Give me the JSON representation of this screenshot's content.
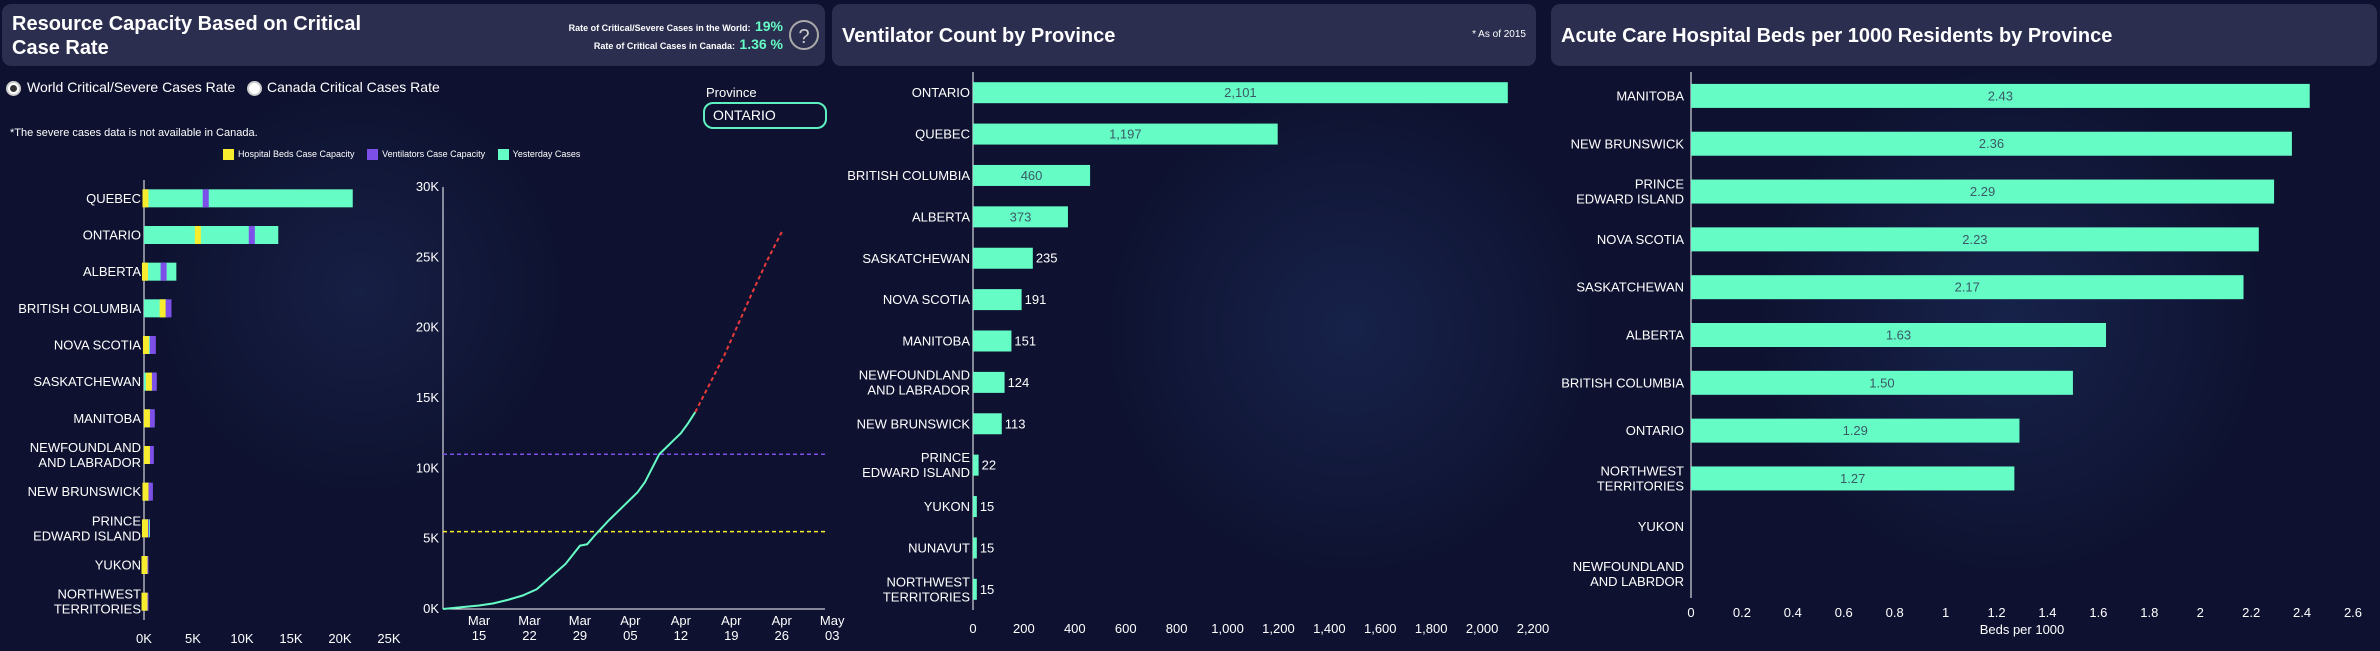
{
  "colors": {
    "bg": "#0e1230",
    "header": "#2b2e4f",
    "green": "#66fcc6",
    "purple": "#7b4fe8",
    "yellow": "#f7ec2e",
    "red": "#e83a3a",
    "axis": "#ffffff"
  },
  "panel1": {
    "title": "Resource Capacity Based on Critical Case Rate",
    "world_rate_label": "Rate of Critical/Severe Cases in the World:",
    "world_rate_value": "19%",
    "canada_rate_label": "Rate of Critical Cases in Canada:",
    "canada_rate_value": "1.36 %",
    "help_icon": "question-circle-icon",
    "help_text": "?",
    "radio_world": "World Critical/Severe Cases Rate",
    "radio_canada": "Canada Critical Cases Rate",
    "province_label": "Province",
    "province_value": "ONTARIO",
    "note": "*The severe cases data is not available in Canada.",
    "legend": [
      "Hospital Beds Case Capacity",
      "Ventilators Case Capacity",
      "Yesterday Cases"
    ]
  },
  "panel2": {
    "title": "Ventilator Count by Province",
    "note": "* As of 2015"
  },
  "panel3": {
    "title": "Acute Care Hospital Beds per 1000 Residents by Province"
  },
  "chart_data": [
    {
      "type": "bar",
      "orientation": "horizontal",
      "categories": [
        "QUEBEC",
        "ONTARIO",
        "ALBERTA",
        "BRITISH COLUMBIA",
        "NOVA SCOTIA",
        "SASKATCHEWAN",
        "MANITOBA",
        "NEWFOUNDLAND AND LABRADOR",
        "NEW BRUNSWICK",
        "PRINCE EDWARD ISLAND",
        "YUKON",
        "NORTHWEST TERRITORIES"
      ],
      "series": [
        {
          "name": "Yesterday Cases",
          "values": [
            21300,
            13700,
            3300,
            2400,
            900,
            1200,
            1000,
            600,
            600,
            600,
            300,
            300
          ]
        },
        {
          "name": "Ventilators Case Capacity",
          "values": [
            6300,
            11000,
            2000,
            2500,
            900,
            1000,
            800,
            700,
            600,
            200,
            150,
            150
          ]
        },
        {
          "name": "Hospital Beds Case Capacity",
          "values": [
            150,
            5500,
            100,
            1900,
            200,
            500,
            300,
            300,
            150,
            100,
            50,
            50
          ]
        }
      ],
      "xlim": [
        0,
        25000
      ],
      "xticks": [
        "0K",
        "5K",
        "10K",
        "15K",
        "20K",
        "25K"
      ]
    },
    {
      "type": "line",
      "x_ticks": [
        "Mar\n15",
        "Mar\n22",
        "Mar\n29",
        "Apr\n05",
        "Apr\n12",
        "Apr\n19",
        "Apr\n26",
        "May\n03"
      ],
      "yticks": [
        "0K",
        "5K",
        "10K",
        "15K",
        "20K",
        "25K",
        "30K"
      ],
      "ylim": [
        0,
        30000
      ],
      "xlim_days": [
        0,
        53
      ],
      "series": [
        {
          "name": "Yesterday Cases",
          "x": [
            0,
            3,
            5,
            7,
            9,
            11,
            13,
            15,
            17,
            19,
            20,
            21,
            23,
            25,
            27,
            28,
            29,
            30,
            31,
            32,
            33,
            34,
            35
          ],
          "y": [
            0,
            150,
            250,
            400,
            650,
            950,
            1400,
            2300,
            3200,
            4500,
            4600,
            5200,
            6300,
            7300,
            8300,
            9000,
            10000,
            11000,
            11500,
            12000,
            12500,
            13200,
            14000
          ]
        },
        {
          "name": "Projection",
          "x": [
            35,
            37,
            39,
            41,
            43,
            45,
            47
          ],
          "y": [
            14000,
            16000,
            18000,
            20300,
            22600,
            24800,
            26800
          ]
        }
      ],
      "reference_lines": [
        {
          "name": "Ventilators Case Capacity",
          "y": 11000
        },
        {
          "name": "Hospital Beds Case Capacity",
          "y": 5500
        }
      ]
    },
    {
      "type": "bar",
      "orientation": "horizontal",
      "categories": [
        "ONTARIO",
        "QUEBEC",
        "BRITISH COLUMBIA",
        "ALBERTA",
        "SASKATCHEWAN",
        "NOVA SCOTIA",
        "MANITOBA",
        "NEWFOUNDLAND AND LABRADOR",
        "NEW BRUNSWICK",
        "PRINCE EDWARD ISLAND",
        "YUKON",
        "NUNAVUT",
        "NORTHWEST TERRITORIES"
      ],
      "values": [
        2101,
        1197,
        460,
        373,
        235,
        191,
        151,
        124,
        113,
        22,
        15,
        15,
        15
      ],
      "labels": [
        "2,101",
        "1,197",
        "460",
        "373",
        "235",
        "191",
        "151",
        "124",
        "113",
        "22",
        "15",
        "15",
        "15"
      ],
      "xlim": [
        0,
        2200
      ],
      "xticks": [
        "0",
        "200",
        "400",
        "600",
        "800",
        "1,000",
        "1,200",
        "1,400",
        "1,600",
        "1,800",
        "2,000",
        "2,200"
      ]
    },
    {
      "type": "bar",
      "orientation": "horizontal",
      "categories": [
        "MANITOBA",
        "NEW BRUNSWICK",
        "PRINCE EDWARD ISLAND",
        "NOVA SCOTIA",
        "SASKATCHEWAN",
        "ALBERTA",
        "BRITISH COLUMBIA",
        "ONTARIO",
        "NORTHWEST TERRITORIES",
        "YUKON",
        "NEWFOUNDLAND AND LABRDOR"
      ],
      "values": [
        2.43,
        2.36,
        2.29,
        2.23,
        2.17,
        1.63,
        1.5,
        1.29,
        1.27,
        null,
        null
      ],
      "labels": [
        "2.43",
        "2.36",
        "2.29",
        "2.23",
        "2.17",
        "1.63",
        "1.50",
        "1.29",
        "1.27",
        "",
        ""
      ],
      "xlim": [
        0,
        2.6
      ],
      "xticks": [
        "0",
        "0.2",
        "0.4",
        "0.6",
        "0.8",
        "1",
        "1.2",
        "1.4",
        "1.6",
        "1.8",
        "2",
        "2.2",
        "2.4",
        "2.6"
      ],
      "xlabel": "Beds per 1000"
    }
  ]
}
